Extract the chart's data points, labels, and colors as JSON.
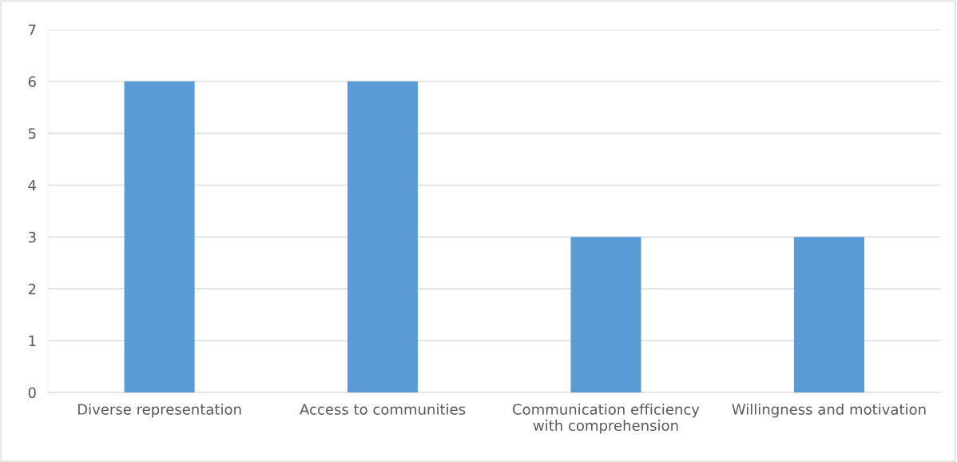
{
  "chart_data": {
    "type": "bar",
    "categories": [
      "Diverse representation",
      "Access to communities",
      "Communication efficiency\nwith comprehension",
      "Willingness and motivation"
    ],
    "values": [
      6,
      6,
      3,
      3
    ],
    "color": "#5b9bd5",
    "ylim": [
      0,
      7
    ],
    "yticks": [
      0,
      1,
      2,
      3,
      4,
      5,
      6,
      7
    ],
    "grid": "y"
  }
}
